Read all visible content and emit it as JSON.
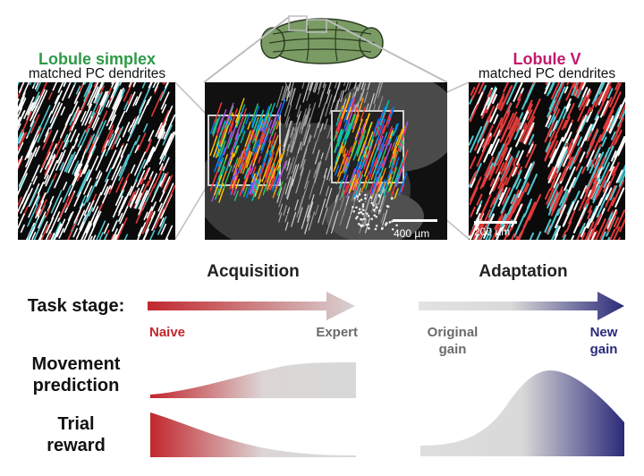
{
  "left_panel": {
    "title": "Lobule simplex",
    "subtitle": "matched PC dendrites",
    "title_color": "#2e9a47"
  },
  "right_panel": {
    "title": "Lobule V",
    "subtitle": "matched PC dendrites",
    "title_color": "#c2186b",
    "scale_label": "200 µm"
  },
  "center_panel": {
    "scale_label": "400 µm"
  },
  "sections": {
    "acquisition": "Acquisition",
    "adaptation": "Adaptation"
  },
  "rows": {
    "task_stage": "Task stage:",
    "movement_line1": "Movement",
    "movement_line2": "prediction",
    "reward_line1": "Trial",
    "reward_line2": "reward"
  },
  "stages": {
    "naive": "Naive",
    "expert": "Expert",
    "original_line1": "Original",
    "original_line2": "gain",
    "new_line1": "New",
    "new_line2": "gain"
  },
  "colors": {
    "naive_red": "#c1272d",
    "expert_gray": "#d8d8d8",
    "new_gain_blue": "#2b2a7a",
    "gray_text": "#6b6b6b"
  }
}
